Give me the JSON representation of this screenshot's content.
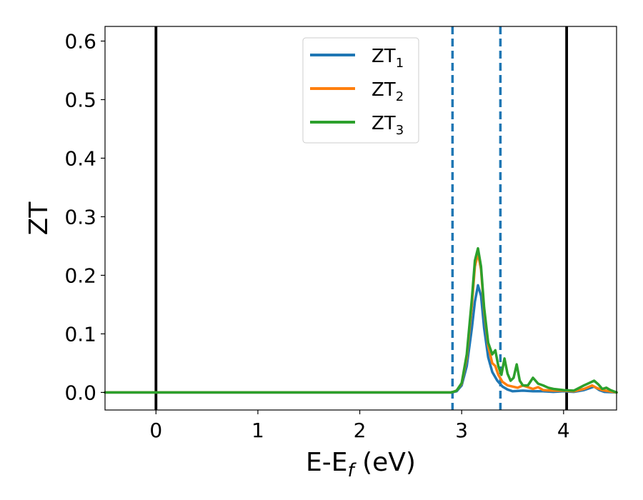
{
  "chart_data": {
    "type": "line",
    "title": "",
    "xlabel": {
      "main": "E-E",
      "sub": "f",
      "rest": " (eV)"
    },
    "ylabel": "ZT",
    "xlim": [
      -0.5,
      4.52
    ],
    "ylim": [
      -0.03,
      0.625
    ],
    "xticks": [
      0,
      1,
      2,
      3,
      4
    ],
    "yticks": [
      0.0,
      0.1,
      0.2,
      0.3,
      0.4,
      0.5,
      0.6
    ],
    "xtick_labels": [
      "0",
      "1",
      "2",
      "3",
      "4"
    ],
    "ytick_labels": [
      "0.0",
      "0.1",
      "0.2",
      "0.3",
      "0.4",
      "0.5",
      "0.6"
    ],
    "grid": false,
    "legend_position": "top-center",
    "vertical_lines": [
      {
        "x": 0.0,
        "style": "solid",
        "color": "#000000"
      },
      {
        "x": 4.03,
        "style": "solid",
        "color": "#000000"
      },
      {
        "x": 2.91,
        "style": "dashed",
        "color": "#1f77b4"
      },
      {
        "x": 3.38,
        "style": "dashed",
        "color": "#1f77b4"
      }
    ],
    "series": [
      {
        "name": "ZT",
        "subscript": "1",
        "color": "#1f77b4",
        "x": [
          -0.5,
          2.9,
          2.95,
          3.0,
          3.05,
          3.1,
          3.13,
          3.16,
          3.19,
          3.22,
          3.26,
          3.3,
          3.35,
          3.4,
          3.45,
          3.5,
          3.6,
          3.7,
          3.8,
          3.9,
          4.0,
          4.1,
          4.2,
          4.3,
          4.35,
          4.4,
          4.52
        ],
        "y": [
          0.0,
          0.0,
          0.002,
          0.012,
          0.045,
          0.11,
          0.155,
          0.183,
          0.165,
          0.11,
          0.06,
          0.035,
          0.02,
          0.01,
          0.005,
          0.002,
          0.003,
          0.002,
          0.002,
          0.001,
          0.002,
          0.001,
          0.004,
          0.01,
          0.004,
          0.001,
          0.0
        ]
      },
      {
        "name": "ZT",
        "subscript": "2",
        "color": "#ff7f0e",
        "x": [
          -0.5,
          2.9,
          2.95,
          3.0,
          3.05,
          3.1,
          3.13,
          3.16,
          3.19,
          3.22,
          3.26,
          3.3,
          3.33,
          3.36,
          3.4,
          3.45,
          3.5,
          3.55,
          3.6,
          3.7,
          3.75,
          3.8,
          3.9,
          4.0,
          4.1,
          4.2,
          4.28,
          4.32,
          4.38,
          4.45,
          4.52
        ],
        "y": [
          0.0,
          0.0,
          0.003,
          0.015,
          0.06,
          0.15,
          0.215,
          0.238,
          0.21,
          0.14,
          0.08,
          0.05,
          0.045,
          0.03,
          0.018,
          0.012,
          0.01,
          0.008,
          0.012,
          0.006,
          0.009,
          0.004,
          0.003,
          0.003,
          0.002,
          0.006,
          0.012,
          0.008,
          0.004,
          0.002,
          0.0
        ]
      },
      {
        "name": "ZT",
        "subscript": "3",
        "color": "#2ca02c",
        "x": [
          -0.5,
          2.9,
          2.95,
          3.0,
          3.05,
          3.1,
          3.13,
          3.16,
          3.19,
          3.22,
          3.26,
          3.3,
          3.33,
          3.36,
          3.39,
          3.42,
          3.45,
          3.48,
          3.51,
          3.54,
          3.57,
          3.6,
          3.65,
          3.7,
          3.75,
          3.8,
          3.85,
          3.9,
          4.0,
          4.1,
          4.2,
          4.25,
          4.3,
          4.34,
          4.38,
          4.42,
          4.46,
          4.52
        ],
        "y": [
          0.0,
          0.0,
          0.003,
          0.016,
          0.065,
          0.16,
          0.225,
          0.246,
          0.215,
          0.145,
          0.085,
          0.065,
          0.072,
          0.045,
          0.03,
          0.058,
          0.032,
          0.02,
          0.025,
          0.048,
          0.02,
          0.012,
          0.012,
          0.025,
          0.015,
          0.012,
          0.008,
          0.006,
          0.004,
          0.003,
          0.012,
          0.016,
          0.02,
          0.014,
          0.006,
          0.008,
          0.004,
          0.0
        ]
      }
    ]
  }
}
